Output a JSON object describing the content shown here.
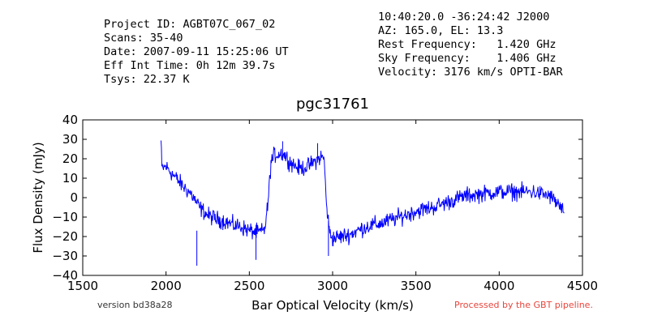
{
  "header": {
    "left_lines": [
      "Project ID: AGBT07C_067_02",
      "Scans: 35-40",
      "Date: 2007-09-11 15:25:06 UT",
      "Eff Int Time: 0h 12m 39.7s",
      "Tsys: 22.37 K"
    ],
    "right_lines": [
      "10:40:20.0 -36:24:42 J2000",
      "AZ: 165.0, EL: 13.3",
      "Rest Frequency:   1.420 GHz",
      "Sky Frequency:    1.406 GHz",
      "Velocity: 3176 km/s OPTI-BAR"
    ]
  },
  "footer": {
    "version": "version bd38a28",
    "processed": "Processed by the GBT pipeline.",
    "processed_color": "#e8453c"
  },
  "chart_data": {
    "type": "line",
    "title": "pgc31761",
    "xlabel": "Bar Optical Velocity (km/s)",
    "ylabel": "Flux Density (mJy)",
    "xlim": [
      1500,
      4500
    ],
    "ylim": [
      -40,
      40
    ],
    "xticks": [
      "1500",
      "2000",
      "2500",
      "3000",
      "3500",
      "4000",
      "4500"
    ],
    "yticks": [
      "40",
      "30",
      "20",
      "10",
      "0",
      "−10",
      "−20",
      "−30",
      "−40"
    ],
    "grid": false,
    "line_color": "#0000ff",
    "series": [
      {
        "x": [
          1970,
          1975,
          2000,
          2050,
          2100,
          2150,
          2180,
          2200,
          2250,
          2300,
          2350,
          2400,
          2450,
          2500,
          2550,
          2590,
          2610,
          2630,
          2650,
          2700,
          2750,
          2800,
          2850,
          2900,
          2930,
          2950,
          2960,
          2980,
          3000,
          3050,
          3100,
          3150,
          3200,
          3300,
          3400,
          3500,
          3600,
          3700,
          3800,
          3900,
          4000,
          4100,
          4200,
          4300,
          4350,
          4390
        ],
        "y": [
          29,
          15,
          16,
          11,
          6,
          2,
          -2,
          -5,
          -9,
          -11,
          -12,
          -14,
          -15,
          -17,
          -18,
          -17,
          -5,
          18,
          22,
          23,
          18,
          15,
          16,
          19,
          21,
          20,
          0,
          -17,
          -21,
          -20,
          -19,
          -17,
          -15,
          -13,
          -10,
          -7,
          -5,
          -2,
          1,
          2,
          3,
          3,
          3,
          1,
          -3,
          -8
        ]
      }
    ]
  }
}
